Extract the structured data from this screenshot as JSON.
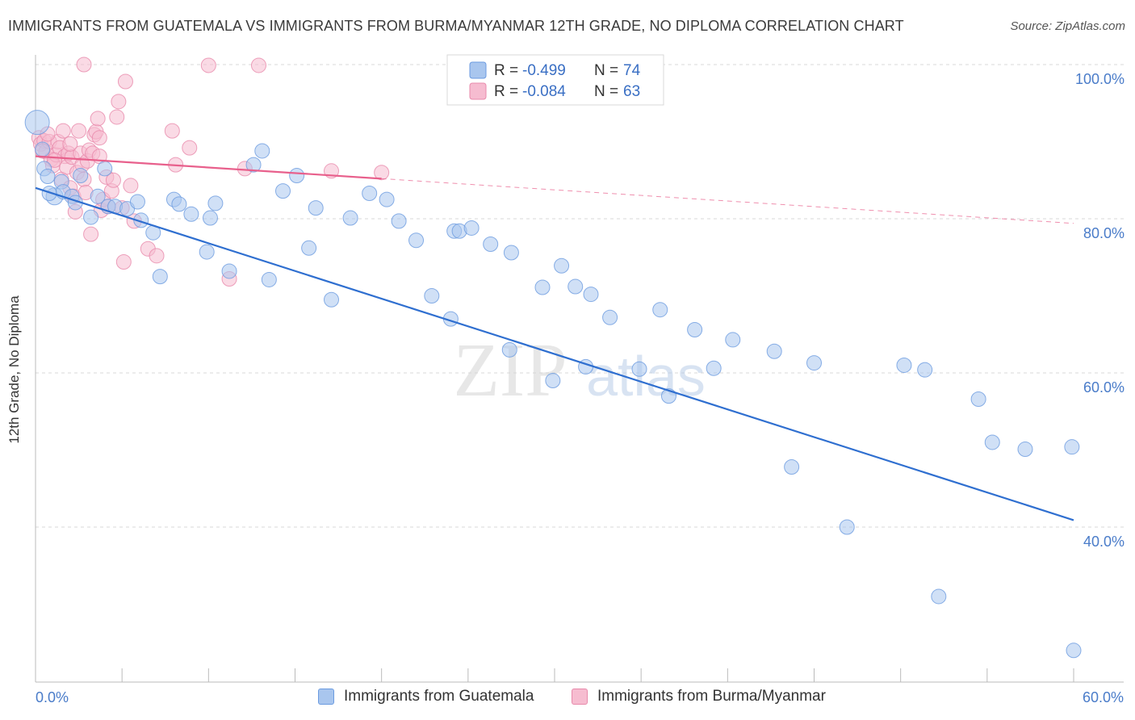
{
  "title": "IMMIGRANTS FROM GUATEMALA VS IMMIGRANTS FROM BURMA/MYANMAR 12TH GRADE, NO DIPLOMA CORRELATION CHART",
  "source": "Source: ZipAtlas.com",
  "watermark": {
    "zip": "ZIP",
    "atlas": "atlas"
  },
  "colors": {
    "blue_fill": "#a9c6ee",
    "blue_stroke": "#6b9be0",
    "blue_line": "#2f6fd0",
    "pink_fill": "#f6bcd0",
    "pink_stroke": "#e88aab",
    "pink_line": "#e8608c",
    "tick_text": "#4a7cc9",
    "grid": "#d8d8d8"
  },
  "legend": {
    "rows": [
      {
        "r_label": "R =",
        "r_value": "-0.499",
        "n_label": "N =",
        "n_value": "74",
        "series": "blue"
      },
      {
        "r_label": "R =",
        "r_value": "-0.084",
        "n_label": "N =",
        "n_value": "63",
        "series": "pink"
      }
    ]
  },
  "bottom_legend": [
    {
      "label": "Immigrants from Guatemala",
      "series": "blue"
    },
    {
      "label": "Immigrants from Burma/Myanmar",
      "series": "pink"
    }
  ],
  "chart_data": {
    "type": "scatter",
    "title": "IMMIGRANTS FROM GUATEMALA VS IMMIGRANTS FROM BURMA/MYANMAR 12TH GRADE, NO DIPLOMA CORRELATION CHART",
    "xlabel": "",
    "ylabel": "12th Grade, No Diploma",
    "xlim": [
      0,
      60
    ],
    "ylim": [
      20.5,
      101.5
    ],
    "x_tick_labels": [
      {
        "value": 0,
        "label": "0.0%"
      },
      {
        "value": 60,
        "label": "60.0%"
      }
    ],
    "y_tick_labels": [
      {
        "value": 100,
        "label": "100.0%"
      },
      {
        "value": 80,
        "label": "80.0%"
      },
      {
        "value": 60,
        "label": "60.0%"
      },
      {
        "value": 40,
        "label": "40.0%"
      }
    ],
    "grid": true,
    "legend_position": "top-center",
    "series": [
      {
        "name": "Immigrants from Guatemala",
        "color": "blue",
        "r": -0.499,
        "n": 74,
        "trend": {
          "x": [
            0,
            60
          ],
          "y": [
            84.0,
            40.9
          ]
        },
        "points": [
          [
            0.1,
            92.5,
            20
          ],
          [
            0.4,
            89.0,
            12
          ],
          [
            0.5,
            86.5,
            12
          ],
          [
            0.7,
            85.5,
            12
          ],
          [
            1.1,
            82.9,
            14
          ],
          [
            1.5,
            84.8,
            12
          ],
          [
            1.6,
            83.5,
            12
          ],
          [
            2.1,
            82.9,
            12
          ],
          [
            2.3,
            82.1,
            12
          ],
          [
            2.6,
            85.6,
            12
          ],
          [
            3.6,
            82.9,
            12
          ],
          [
            4.0,
            86.5,
            12
          ],
          [
            4.2,
            81.6,
            12
          ],
          [
            4.6,
            81.6,
            12
          ],
          [
            5.3,
            81.3,
            12
          ],
          [
            5.9,
            82.2,
            12
          ],
          [
            6.1,
            79.8,
            12
          ],
          [
            8.0,
            82.5,
            12
          ],
          [
            8.3,
            81.9,
            12
          ],
          [
            9.0,
            80.6,
            12
          ],
          [
            10.1,
            80.1,
            12
          ],
          [
            10.4,
            82.0,
            12
          ],
          [
            12.6,
            87.0,
            12
          ],
          [
            13.1,
            88.8,
            12
          ],
          [
            14.3,
            83.6,
            12
          ],
          [
            15.1,
            85.6,
            12
          ],
          [
            16.2,
            81.4,
            12
          ],
          [
            18.2,
            80.1,
            12
          ],
          [
            19.3,
            83.3,
            12
          ],
          [
            20.3,
            82.5,
            12
          ],
          [
            21.0,
            79.7,
            12
          ],
          [
            22.0,
            77.2,
            12
          ],
          [
            24.2,
            78.4,
            12
          ],
          [
            24.5,
            78.4,
            12
          ],
          [
            25.2,
            78.8,
            12
          ],
          [
            26.3,
            76.7,
            12
          ],
          [
            27.5,
            75.6,
            12
          ],
          [
            29.3,
            71.1,
            12
          ],
          [
            30.4,
            73.9,
            12
          ],
          [
            31.2,
            71.2,
            12
          ],
          [
            32.1,
            70.2,
            12
          ],
          [
            33.2,
            67.2,
            12
          ],
          [
            34.9,
            60.5,
            12
          ],
          [
            36.1,
            68.2,
            12
          ],
          [
            38.1,
            65.6,
            12
          ],
          [
            40.3,
            64.3,
            12
          ],
          [
            42.7,
            62.8,
            12
          ],
          [
            45.0,
            61.3,
            12
          ],
          [
            50.2,
            61.0,
            12
          ],
          [
            51.4,
            60.4,
            12
          ],
          [
            54.5,
            56.6,
            12
          ],
          [
            55.3,
            51.0,
            12
          ],
          [
            57.2,
            50.1,
            12
          ],
          [
            59.9,
            50.4,
            12
          ],
          [
            0.8,
            83.3,
            12
          ],
          [
            3.2,
            80.2,
            12
          ],
          [
            6.8,
            78.2,
            12
          ],
          [
            7.2,
            72.5,
            12
          ],
          [
            9.9,
            75.7,
            12
          ],
          [
            11.2,
            73.2,
            12
          ],
          [
            13.5,
            72.1,
            12
          ],
          [
            15.8,
            76.2,
            12
          ],
          [
            17.1,
            69.5,
            12
          ],
          [
            22.9,
            70.0,
            12
          ],
          [
            24.0,
            67.0,
            12
          ],
          [
            27.4,
            63.0,
            12
          ],
          [
            29.9,
            59.0,
            12
          ],
          [
            31.8,
            60.8,
            12
          ],
          [
            36.6,
            57.0,
            12
          ],
          [
            39.2,
            60.6,
            12
          ],
          [
            43.7,
            47.8,
            12
          ],
          [
            46.9,
            40.0,
            12
          ],
          [
            52.2,
            31.0,
            12
          ],
          [
            60.0,
            24.0,
            12
          ]
        ]
      },
      {
        "name": "Immigrants from Burma/Myanmar",
        "color": "pink",
        "r": -0.084,
        "n": 63,
        "trend": {
          "x": [
            0,
            20
          ],
          "y": [
            88.1,
            85.2
          ]
        },
        "trend_dashed": {
          "x": [
            20,
            60
          ],
          "y": [
            85.2,
            79.4
          ]
        },
        "points": [
          [
            0.2,
            90.5,
            12
          ],
          [
            0.3,
            89.7,
            12
          ],
          [
            0.5,
            90.1,
            12
          ],
          [
            0.6,
            88.7,
            12
          ],
          [
            0.8,
            90.0,
            12
          ],
          [
            0.9,
            87.7,
            12
          ],
          [
            1.0,
            86.9,
            12
          ],
          [
            1.2,
            88.3,
            12
          ],
          [
            1.3,
            90.0,
            12
          ],
          [
            1.4,
            89.2,
            12
          ],
          [
            1.5,
            85.1,
            12
          ],
          [
            1.6,
            91.4,
            12
          ],
          [
            1.7,
            88.1,
            12
          ],
          [
            1.8,
            86.7,
            12
          ],
          [
            1.9,
            88.5,
            12
          ],
          [
            2.0,
            84.0,
            12
          ],
          [
            2.1,
            88.0,
            12
          ],
          [
            2.2,
            82.9,
            12
          ],
          [
            2.3,
            80.9,
            12
          ],
          [
            2.4,
            86.0,
            12
          ],
          [
            2.5,
            91.4,
            12
          ],
          [
            2.6,
            88.5,
            12
          ],
          [
            2.7,
            87.0,
            12
          ],
          [
            2.8,
            85.1,
            12
          ],
          [
            2.9,
            83.4,
            12
          ],
          [
            3.0,
            87.5,
            12
          ],
          [
            3.1,
            88.9,
            12
          ],
          [
            3.2,
            78.0,
            12
          ],
          [
            3.3,
            88.5,
            12
          ],
          [
            3.4,
            90.9,
            12
          ],
          [
            3.5,
            91.3,
            12
          ],
          [
            3.6,
            93.0,
            12
          ],
          [
            3.7,
            88.1,
            12
          ],
          [
            3.8,
            81.1,
            12
          ],
          [
            3.9,
            82.5,
            12
          ],
          [
            4.1,
            85.4,
            12
          ],
          [
            4.2,
            81.6,
            12
          ],
          [
            4.4,
            83.6,
            12
          ],
          [
            4.7,
            93.2,
            12
          ],
          [
            4.8,
            95.2,
            12
          ],
          [
            5.0,
            81.4,
            12
          ],
          [
            5.2,
            97.8,
            12
          ],
          [
            5.5,
            84.3,
            12
          ],
          [
            5.7,
            79.7,
            12
          ],
          [
            5.1,
            74.4,
            12
          ],
          [
            6.5,
            76.1,
            12
          ],
          [
            7.0,
            75.2,
            12
          ],
          [
            7.9,
            91.4,
            12
          ],
          [
            8.1,
            87.0,
            12
          ],
          [
            8.9,
            89.2,
            12
          ],
          [
            10.0,
            99.9,
            12
          ],
          [
            11.2,
            72.2,
            12
          ],
          [
            12.1,
            86.5,
            12
          ],
          [
            12.9,
            99.9,
            12
          ],
          [
            17.1,
            86.2,
            12
          ],
          [
            20.0,
            86.0,
            12
          ],
          [
            2.8,
            100.0,
            12
          ],
          [
            3.7,
            90.5,
            12
          ],
          [
            1.1,
            87.6,
            12
          ],
          [
            0.4,
            88.8,
            12
          ],
          [
            0.7,
            91.0,
            12
          ],
          [
            2.0,
            89.7,
            12
          ],
          [
            4.5,
            85.0,
            12
          ]
        ]
      }
    ]
  }
}
